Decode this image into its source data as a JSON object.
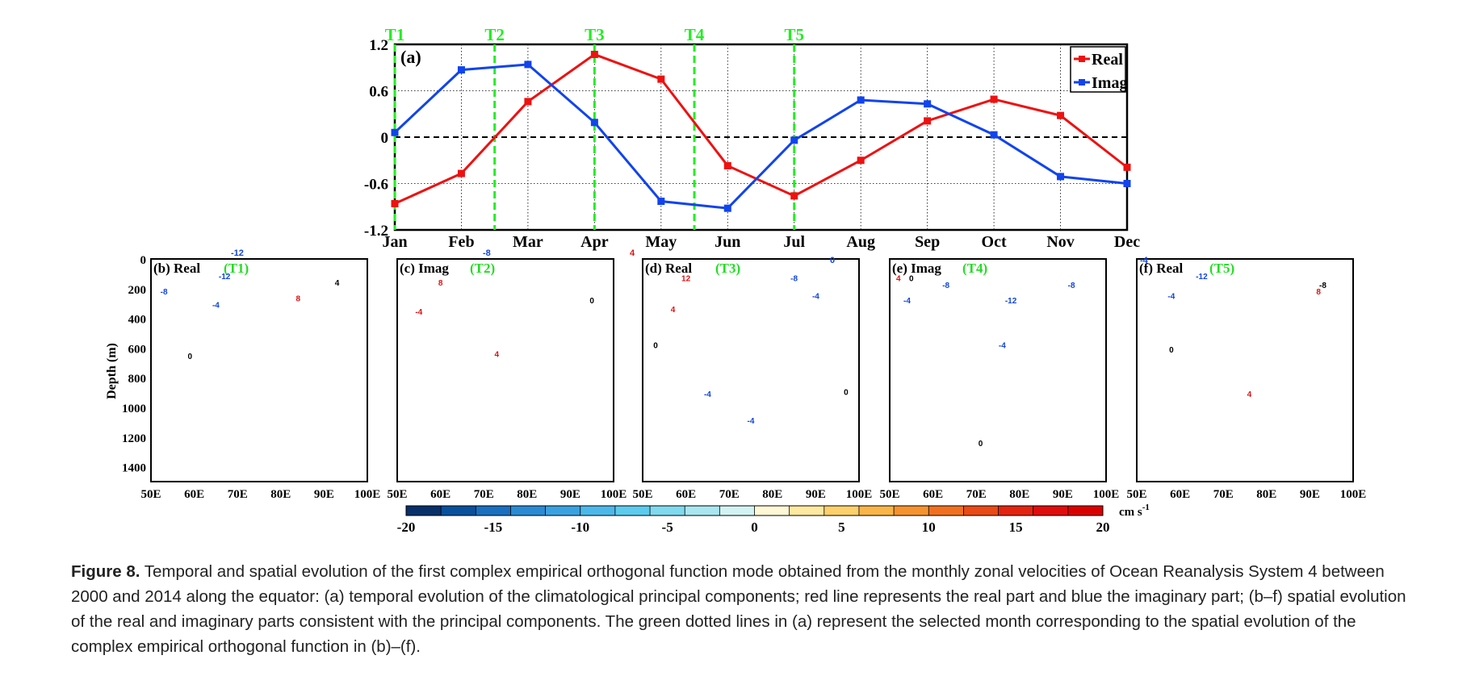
{
  "chart_data": [
    {
      "panel": "(a)",
      "type": "line",
      "categories": [
        "Jan",
        "Feb",
        "Mar",
        "Apr",
        "May",
        "Jun",
        "Jul",
        "Aug",
        "Sep",
        "Oct",
        "Nov",
        "Dec"
      ],
      "series": [
        {
          "name": "Real",
          "color": "#ee1111",
          "values": [
            -0.86,
            -0.47,
            0.46,
            1.07,
            0.75,
            -0.37,
            -0.76,
            -0.3,
            0.21,
            0.49,
            0.28,
            -0.39
          ]
        },
        {
          "name": "Imag",
          "color": "#1144ee",
          "values": [
            0.06,
            0.87,
            0.94,
            0.19,
            -0.83,
            -0.92,
            -0.04,
            0.48,
            0.43,
            0.03,
            -0.51,
            -0.6
          ]
        }
      ],
      "yticks": [
        "1.2",
        "0.6",
        "0",
        "-0.6",
        "-1.2"
      ],
      "ylim": [
        -1.2,
        1.2
      ],
      "markers": [
        {
          "label": "T1",
          "x": 0
        },
        {
          "label": "T2",
          "x": 1.5
        },
        {
          "label": "T3",
          "x": 3
        },
        {
          "label": "T4",
          "x": 4.5
        },
        {
          "label": "T5",
          "x": 6
        }
      ],
      "legend_position": "top-right"
    },
    {
      "type": "heatmap",
      "panels": [
        {
          "label": "(b) Real",
          "time": "(T1)",
          "contours": [
            "-12",
            "-8",
            "-4",
            "0",
            "4",
            "8"
          ]
        },
        {
          "label": "(c) Imag",
          "time": "(T2)",
          "contours": [
            "-4",
            "0",
            "4",
            "8"
          ]
        },
        {
          "label": "(d) Real",
          "time": "(T3)",
          "contours": [
            "12",
            "4",
            "0",
            "-4",
            "-8",
            "-4",
            "-4",
            "0"
          ]
        },
        {
          "label": "(e) Imag",
          "time": "(T4)",
          "contours": [
            "4",
            "0",
            "-4",
            "-8",
            "-12",
            "-8",
            "-4",
            "0"
          ]
        },
        {
          "label": "(f) Real",
          "time": "(T5)",
          "contours": [
            "-12",
            "-8",
            "-4",
            "0",
            "4",
            "8"
          ]
        }
      ],
      "xticks": [
        "50E",
        "60E",
        "70E",
        "80E",
        "90E",
        "100E"
      ],
      "yticks": [
        "0",
        "200",
        "400",
        "600",
        "800",
        "1000",
        "1200",
        "1400"
      ],
      "ylabel": "Depth (m)",
      "stray_labels": {
        "b": "-12",
        "c": "-8",
        "d": "4",
        "e": "0",
        "f": "-4"
      }
    }
  ],
  "colorbar": {
    "ticks": [
      "-20",
      "-15",
      "-10",
      "-5",
      "0",
      "5",
      "10",
      "15",
      "20"
    ],
    "unit_main": "cm s",
    "unit_sup": "-1",
    "colors": [
      "#08306b",
      "#08519c",
      "#1a6fbf",
      "#2b8ad3",
      "#3aa1e0",
      "#4cb8ea",
      "#5ccbee",
      "#7fd9ef",
      "#a9e6f0",
      "#d2f3f2",
      "#fff8d6",
      "#fde9a0",
      "#fcd06b",
      "#f9b548",
      "#f69330",
      "#f0701f",
      "#e94a16",
      "#e32410",
      "#e00d0d",
      "#db0000"
    ]
  },
  "caption": {
    "lead": "Figure 8.",
    "text": " Temporal and spatial evolution of the first complex empirical orthogonal function mode obtained from the monthly zonal velocities of Ocean Reanalysis System 4 between 2000 and 2014 along the equator: (a) temporal evolution of the climatological principal components; red line represents the real part and blue the imaginary part; (b–f) spatial evolution of the real and imaginary parts consistent with the principal components. The green dotted lines in (a) represent the selected month corresponding to the spatial evolution of the complex empirical orthogonal function in (b)–(f)."
  }
}
